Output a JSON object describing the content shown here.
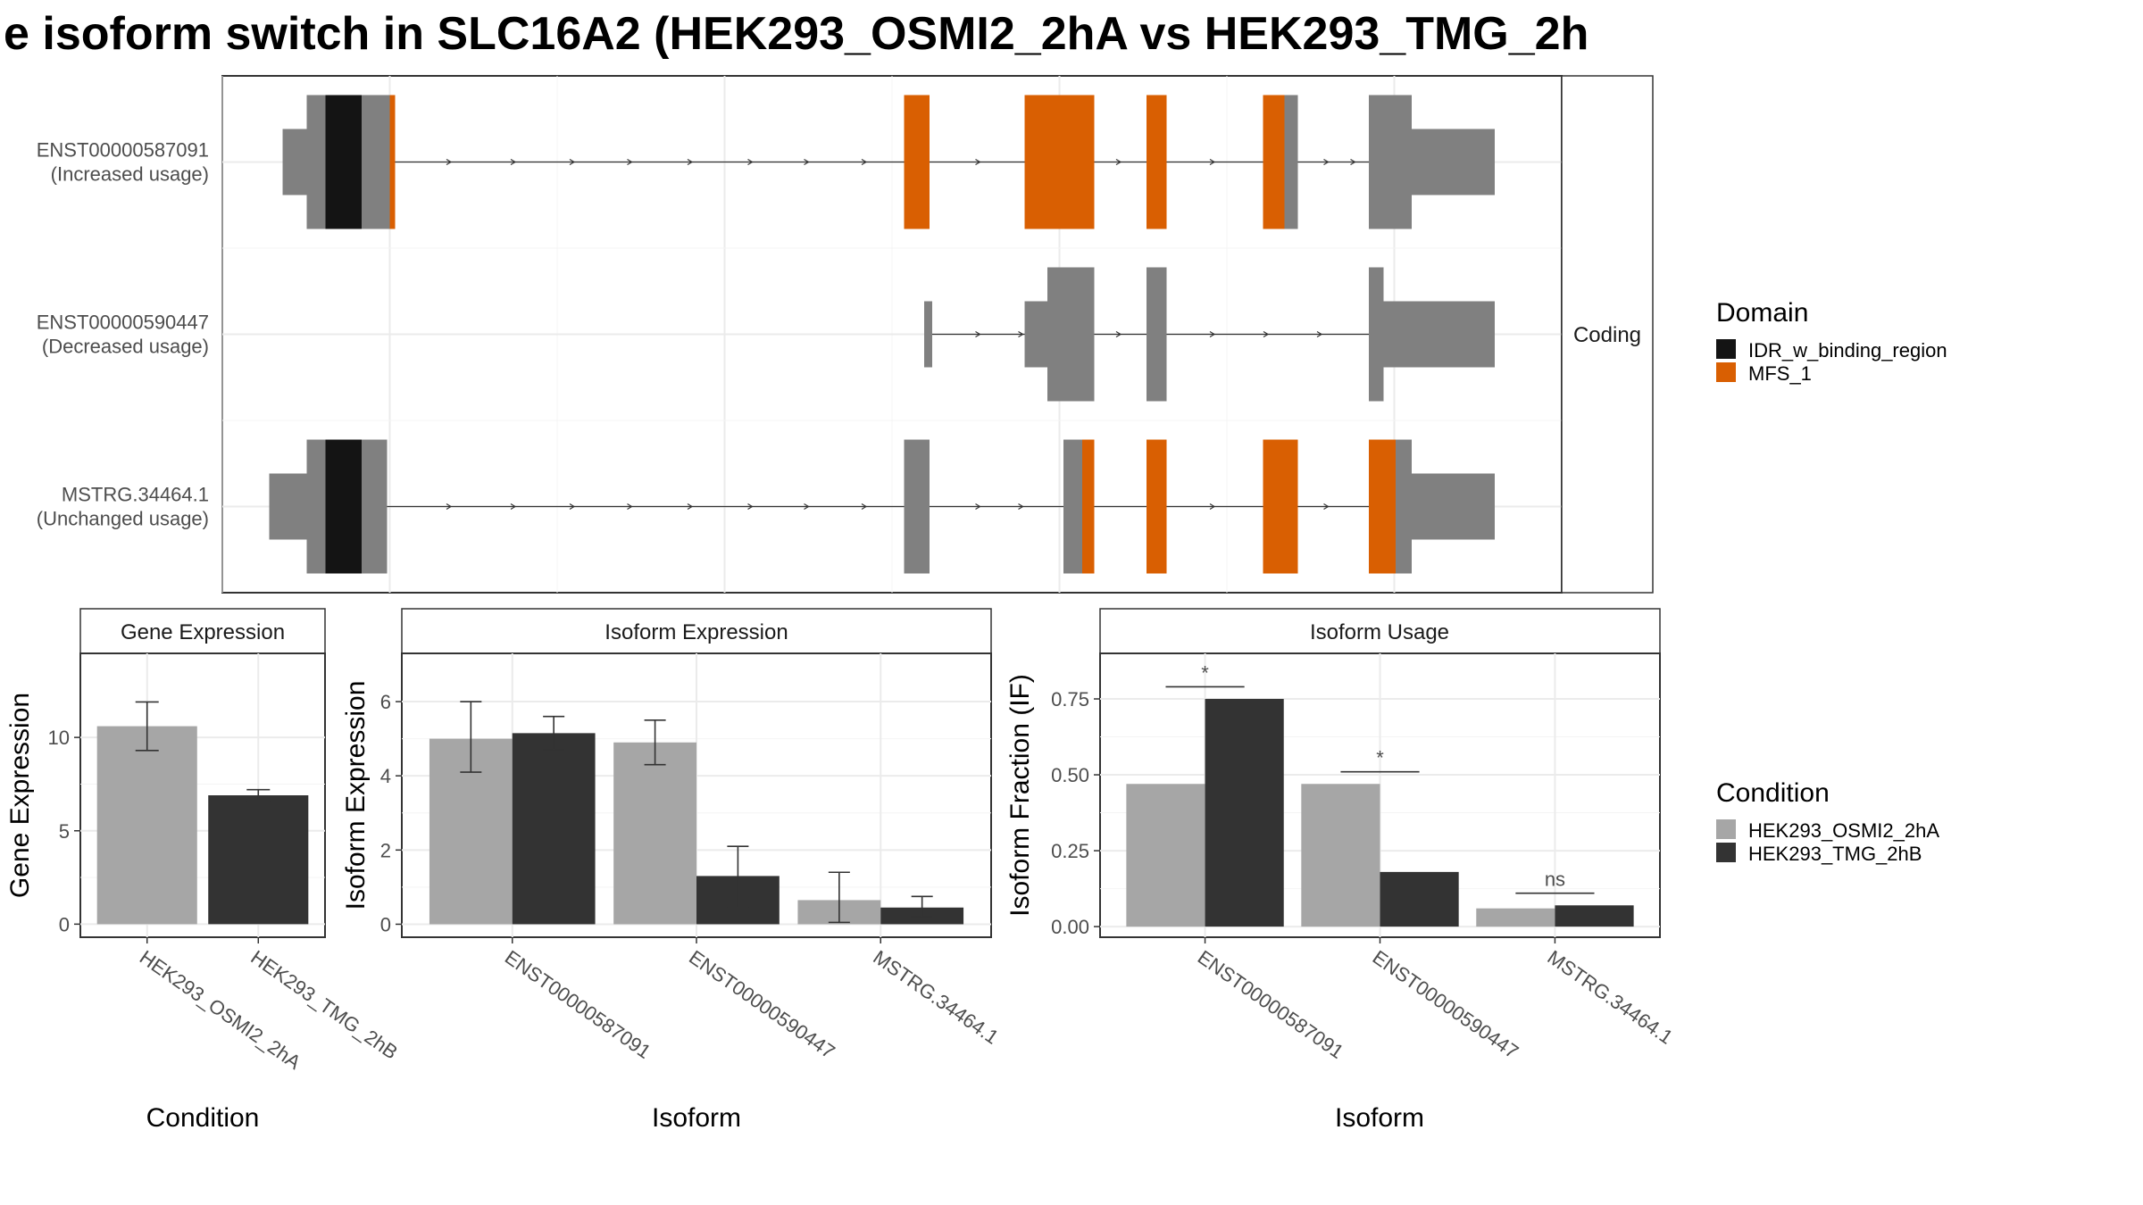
{
  "title": "e isoform switch in SLC16A2 (HEK293_OSMI2_2hA vs HEK293_TMG_2h",
  "colors": {
    "cond_a": "#a6a6a6",
    "cond_b": "#333333",
    "domain_none": "#808080",
    "IDR_w_binding_region": "#141414",
    "MFS_1": "#d95f02"
  },
  "chart_data": [
    {
      "type": "gene-structure",
      "strip": "Coding",
      "xlim": [
        0,
        1000
      ],
      "isoforms": [
        {
          "name": "ENST00000587091",
          "label": "(Increased usage)",
          "exons": [
            {
              "start": 45,
              "end": 63,
              "coding": false,
              "domain": "none"
            },
            {
              "start": 63,
              "end": 121,
              "coding": true,
              "domain": "none"
            },
            {
              "start": 63,
              "end": 77,
              "coding": true,
              "domain": "none"
            },
            {
              "start": 77,
              "end": 104,
              "coding": true,
              "domain": "IDR_w_binding_region"
            },
            {
              "start": 104,
              "end": 125,
              "coding": true,
              "domain": "none"
            },
            {
              "start": 125,
              "end": 129,
              "coding": true,
              "domain": "MFS_1"
            },
            {
              "start": 509,
              "end": 528,
              "coding": true,
              "domain": "MFS_1"
            },
            {
              "start": 599,
              "end": 651,
              "coding": true,
              "domain": "MFS_1"
            },
            {
              "start": 690,
              "end": 705,
              "coding": true,
              "domain": "MFS_1"
            },
            {
              "start": 777,
              "end": 793,
              "coding": true,
              "domain": "MFS_1"
            },
            {
              "start": 793,
              "end": 803,
              "coding": true,
              "domain": "none"
            },
            {
              "start": 856,
              "end": 888,
              "coding": true,
              "domain": "none"
            },
            {
              "start": 888,
              "end": 950,
              "coding": false,
              "domain": "none"
            }
          ],
          "introns": [
            [
              129,
              509
            ],
            [
              528,
              599
            ],
            [
              651,
              690
            ],
            [
              705,
              777
            ],
            [
              803,
              856
            ]
          ],
          "arrows": [
            170,
            218,
            262,
            305,
            350,
            395,
            437,
            480,
            565,
            625,
            670,
            740,
            825,
            845
          ]
        },
        {
          "name": "ENST00000590447",
          "label": "(Decreased usage)",
          "exons": [
            {
              "start": 524,
              "end": 530,
              "coding": false,
              "domain": "none"
            },
            {
              "start": 599,
              "end": 616,
              "coding": false,
              "domain": "none"
            },
            {
              "start": 616,
              "end": 651,
              "coding": true,
              "domain": "none"
            },
            {
              "start": 690,
              "end": 705,
              "coding": true,
              "domain": "none"
            },
            {
              "start": 856,
              "end": 867,
              "coding": true,
              "domain": "none"
            },
            {
              "start": 867,
              "end": 950,
              "coding": false,
              "domain": "none"
            }
          ],
          "introns": [
            [
              530,
              599
            ],
            [
              651,
              690
            ],
            [
              705,
              856
            ]
          ],
          "arrows": [
            565,
            597,
            670,
            740,
            780,
            820
          ]
        },
        {
          "name": "MSTRG.34464.1",
          "label": "(Unchanged usage)",
          "exons": [
            {
              "start": 35,
              "end": 63,
              "coding": false,
              "domain": "none"
            },
            {
              "start": 63,
              "end": 77,
              "coding": true,
              "domain": "none"
            },
            {
              "start": 77,
              "end": 104,
              "coding": true,
              "domain": "IDR_w_binding_region"
            },
            {
              "start": 104,
              "end": 123,
              "coding": true,
              "domain": "none"
            },
            {
              "start": 509,
              "end": 528,
              "coding": true,
              "domain": "none"
            },
            {
              "start": 628,
              "end": 642,
              "coding": true,
              "domain": "none"
            },
            {
              "start": 642,
              "end": 651,
              "coding": true,
              "domain": "MFS_1"
            },
            {
              "start": 690,
              "end": 705,
              "coding": true,
              "domain": "MFS_1"
            },
            {
              "start": 777,
              "end": 803,
              "coding": true,
              "domain": "MFS_1"
            },
            {
              "start": 856,
              "end": 876,
              "coding": true,
              "domain": "MFS_1"
            },
            {
              "start": 876,
              "end": 888,
              "coding": true,
              "domain": "none"
            },
            {
              "start": 888,
              "end": 950,
              "coding": false,
              "domain": "none"
            }
          ],
          "introns": [
            [
              123,
              509
            ],
            [
              528,
              628
            ],
            [
              651,
              690
            ],
            [
              705,
              777
            ],
            [
              803,
              856
            ]
          ],
          "arrows": [
            170,
            218,
            262,
            305,
            350,
            395,
            437,
            480,
            565,
            597,
            740,
            825
          ]
        }
      ],
      "legend": {
        "title": "Domain",
        "entries": [
          "IDR_w_binding_region",
          "MFS_1"
        ]
      }
    },
    {
      "type": "bar",
      "strip": "Gene Expression",
      "xlabel": "Condition",
      "ylabel": "Gene Expression",
      "categories": [
        "HEK293_OSMI2_2hA",
        "HEK293_TMG_2hB"
      ],
      "values": [
        10.6,
        6.9
      ],
      "errors": [
        [
          9.3,
          11.9
        ],
        [
          6.6,
          7.2
        ]
      ],
      "ylim": [
        -0.7,
        14.5
      ],
      "yticks": [
        0,
        5,
        10
      ]
    },
    {
      "type": "bar",
      "strip": "Isoform Expression",
      "xlabel": "Isoform",
      "ylabel": "Isoform Expression",
      "categories": [
        "ENST00000587091",
        "ENST00000590447",
        "MSTRG.34464.1"
      ],
      "series": [
        {
          "values": [
            5.0,
            4.9,
            0.65
          ],
          "errors": [
            [
              4.1,
              6.0
            ],
            [
              4.3,
              5.5
            ],
            [
              0.05,
              1.4
            ]
          ]
        },
        {
          "values": [
            5.15,
            1.3,
            0.45
          ],
          "errors": [
            [
              4.7,
              5.6
            ],
            [
              0.45,
              2.1
            ],
            [
              0.2,
              0.75
            ]
          ]
        }
      ],
      "ylim": [
        -0.35,
        7.3
      ],
      "yticks": [
        0,
        2,
        4,
        6
      ]
    },
    {
      "type": "bar",
      "strip": "Isoform Usage",
      "xlabel": "Isoform",
      "ylabel": "Isoform Fraction (IF)",
      "categories": [
        "ENST00000587091",
        "ENST00000590447",
        "MSTRG.34464.1"
      ],
      "series": [
        {
          "values": [
            0.47,
            0.47,
            0.06
          ]
        },
        {
          "values": [
            0.75,
            0.18,
            0.07
          ]
        }
      ],
      "significance": [
        "*",
        "*",
        "ns"
      ],
      "sig_y": [
        0.79,
        0.51,
        0.11
      ],
      "ylim": [
        -0.035,
        0.9
      ],
      "yticks": [
        0.0,
        0.25,
        0.5,
        0.75
      ],
      "ytick_labels": [
        "0.00",
        "0.25",
        "0.50",
        "0.75"
      ]
    }
  ],
  "condition_legend": {
    "title": "Condition",
    "entries": [
      "HEK293_OSMI2_2hA",
      "HEK293_TMG_2hB"
    ]
  }
}
